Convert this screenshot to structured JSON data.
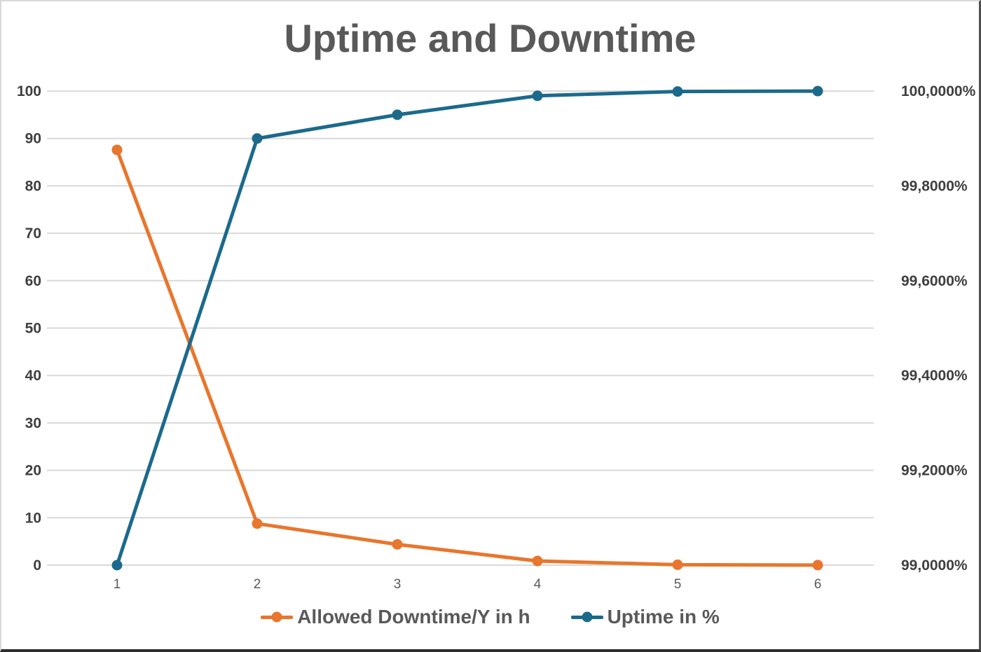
{
  "chart_data": {
    "type": "line",
    "title": "Uptime and Downtime",
    "x_tick_labels": [
      "1",
      "2",
      "3",
      "4",
      "5",
      "6"
    ],
    "series": [
      {
        "name": "Allowed Downtime/Y in h",
        "axis": "left",
        "color": "#E8762C",
        "values": [
          87.6,
          8.76,
          4.38,
          0.88,
          0.09,
          0.01
        ]
      },
      {
        "name": "Uptime in %",
        "axis": "right",
        "color": "#1B6A8C",
        "values": [
          99.0,
          99.9,
          99.95,
          99.99,
          99.999,
          99.9999
        ]
      }
    ],
    "left_axis": {
      "min": 0,
      "max": 100,
      "tick_step": 10,
      "tick_labels": [
        "0",
        "10",
        "20",
        "30",
        "40",
        "50",
        "60",
        "70",
        "80",
        "90",
        "100"
      ]
    },
    "right_axis": {
      "min": 99,
      "max": 100,
      "tick_labels": [
        "99,0000%",
        "99,2000%",
        "99,4000%",
        "99,6000%",
        "99,8000%",
        "100,0000%"
      ]
    },
    "grid": "horizontal",
    "gridline_color": "#D9D9D9",
    "legend_position": "bottom"
  }
}
